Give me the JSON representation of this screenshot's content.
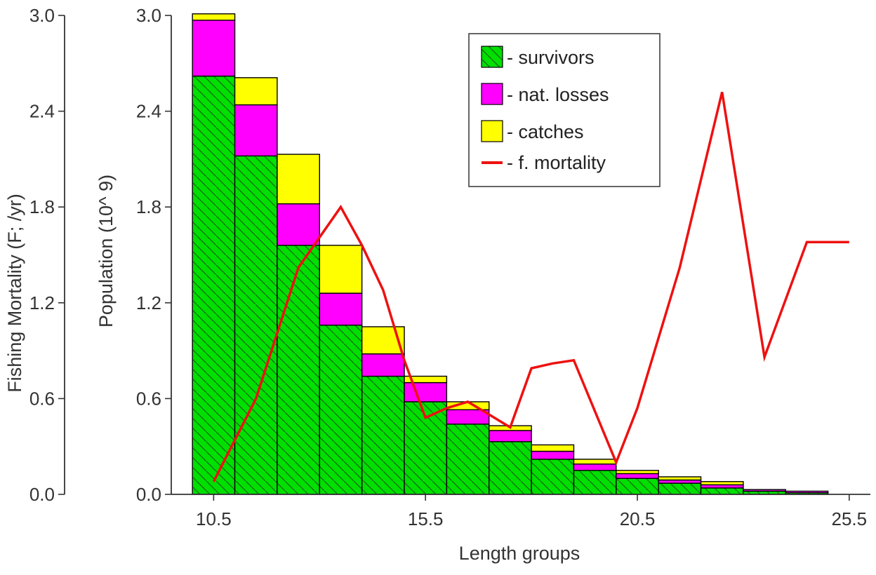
{
  "chart_data": {
    "type": "bar",
    "xlabel": "Length groups",
    "ylabel_left": "Fishing Mortality (F; /yr)",
    "ylabel_right": "Population (10^ 9)",
    "x_ticks": [
      "10.5",
      "15.5",
      "20.5",
      "25.5"
    ],
    "y_ticks_left": [
      "0.0",
      "0.6",
      "1.2",
      "1.8",
      "2.4",
      "3.0"
    ],
    "y_ticks_population": [
      "0.0",
      "0.6",
      "1.2",
      "1.8",
      "2.4",
      "3.0"
    ],
    "xlim": [
      9.5,
      26.0
    ],
    "ylim_population": [
      0,
      3.0
    ],
    "ylim_mortality": [
      0,
      3.0
    ],
    "categories": [
      10.5,
      11.5,
      12.5,
      13.5,
      14.5,
      15.5,
      16.5,
      17.5,
      18.5,
      19.5,
      20.5,
      21.5,
      22.5,
      23.5,
      24.5
    ],
    "series": [
      {
        "name": "- survivors",
        "values": [
          2.62,
          2.12,
          1.56,
          1.06,
          0.74,
          0.58,
          0.44,
          0.33,
          0.22,
          0.15,
          0.1,
          0.07,
          0.04,
          0.02,
          0.01
        ]
      },
      {
        "name": "- nat. losses",
        "values": [
          0.35,
          0.32,
          0.26,
          0.2,
          0.14,
          0.12,
          0.09,
          0.07,
          0.05,
          0.04,
          0.03,
          0.02,
          0.02,
          0.01,
          0.01
        ]
      },
      {
        "name": "- catches",
        "values": [
          0.04,
          0.17,
          0.31,
          0.3,
          0.17,
          0.04,
          0.05,
          0.03,
          0.04,
          0.03,
          0.02,
          0.02,
          0.02,
          0.0,
          0.0
        ]
      }
    ],
    "f_mortality": {
      "name": "- f. mortality",
      "x": [
        10.5,
        11.5,
        12.5,
        13.5,
        14.0,
        14.5,
        15.0,
        15.5,
        16.0,
        16.5,
        17.0,
        17.5,
        18.0,
        18.5,
        19.0,
        20.0,
        20.5,
        21.5,
        22.5,
        23.5,
        24.5,
        25.5
      ],
      "y": [
        0.08,
        0.6,
        1.42,
        1.8,
        1.56,
        1.28,
        0.84,
        0.48,
        0.54,
        0.58,
        0.5,
        0.42,
        0.79,
        0.82,
        0.84,
        0.2,
        0.54,
        1.42,
        2.52,
        0.86,
        1.58,
        1.58
      ]
    },
    "colors": {
      "survivors": "#00e000",
      "nat_losses": "#ff00ff",
      "catches": "#ffff00",
      "f_mortality": "#ee1111",
      "outline": "#000000"
    },
    "legend_position": "top-right"
  }
}
